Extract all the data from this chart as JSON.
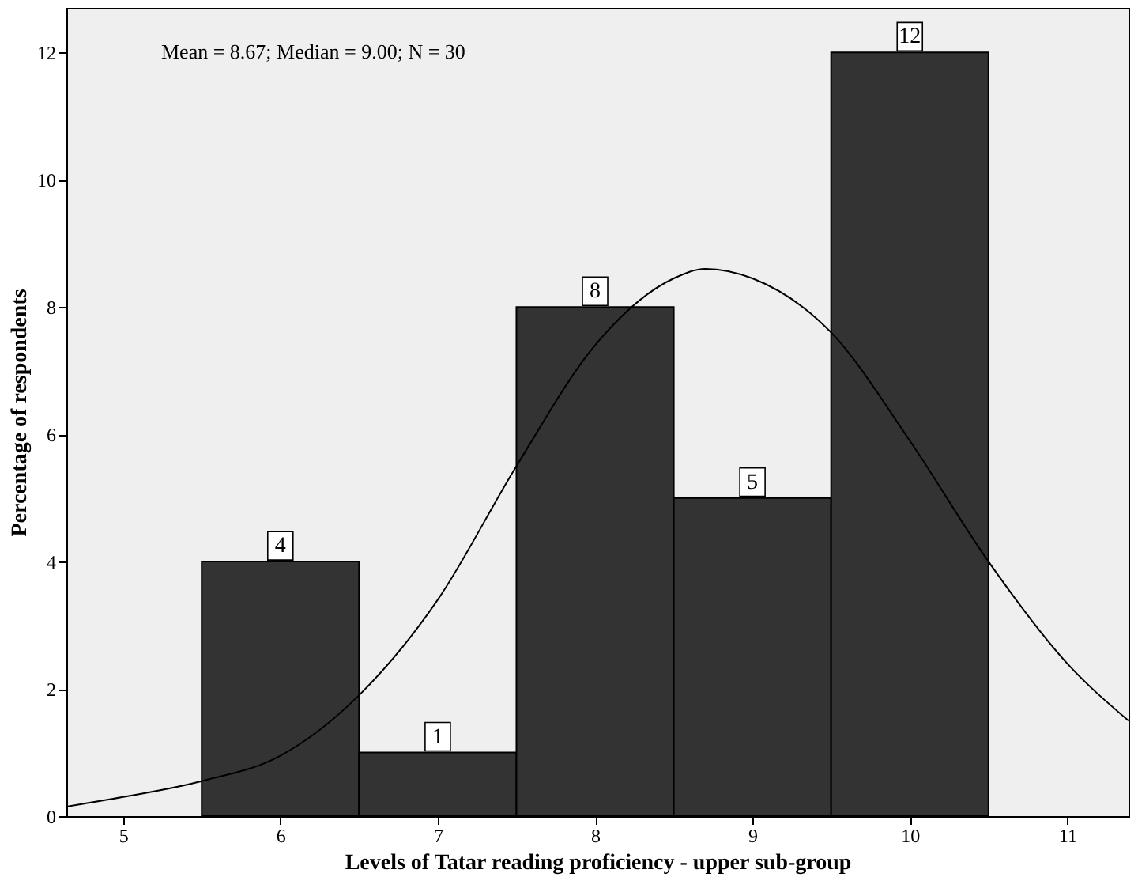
{
  "chart_data": {
    "type": "histogram",
    "xlabel": "Levels of Tatar reading proficiency - upper sub-group",
    "ylabel": "Percentage of respondents",
    "annotations": [
      "Mean = 8.67; Median = 9.00; N = 30"
    ],
    "bins": [
      5.5,
      6.5,
      7.5,
      8.5,
      9.5,
      10.5
    ],
    "values": [
      4,
      1,
      8,
      5,
      12
    ],
    "value_labels": [
      "4",
      "1",
      "8",
      "5",
      "12"
    ],
    "color": "#333333",
    "series": [
      {
        "type": "line",
        "color": "#000000",
        "x": [
          4.64,
          5,
          5.5,
          6,
          6.5,
          7,
          7.5,
          8,
          8.5,
          8.7,
          9,
          9.5,
          10,
          10.5,
          11,
          11.39
        ],
        "values": [
          0.15,
          0.3,
          0.55,
          0.95,
          1.9,
          3.4,
          5.5,
          7.4,
          8.45,
          8.6,
          8.45,
          7.6,
          5.9,
          4.0,
          2.4,
          1.5
        ]
      }
    ],
    "xlim": [
      4.64,
      11.39
    ],
    "ylim": [
      0,
      12.7
    ],
    "xticks": [
      5,
      6,
      7,
      8,
      9,
      10,
      11
    ],
    "yticks": [
      0,
      2,
      4,
      6,
      8,
      10,
      12
    ],
    "grid": false
  }
}
